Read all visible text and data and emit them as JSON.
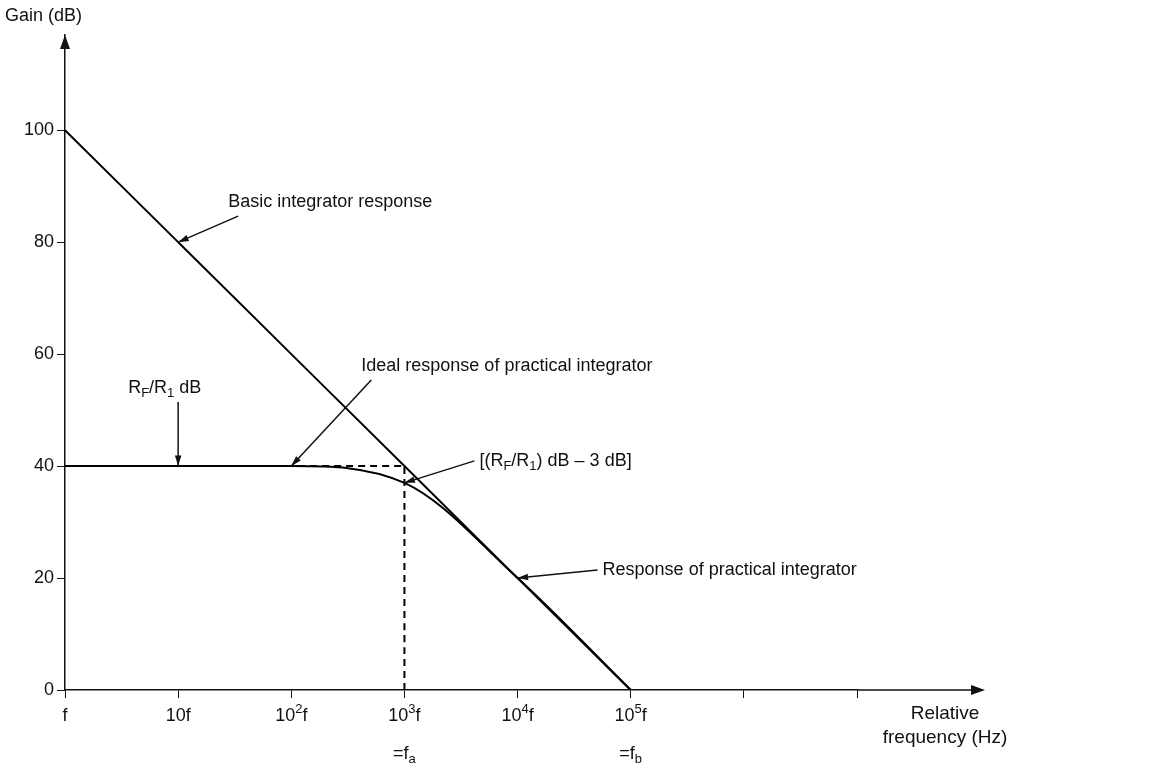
{
  "chart_data": {
    "type": "line",
    "xlabel": "Relative frequency (Hz)",
    "ylabel": "Gain (dB)",
    "grid": false,
    "legend": false,
    "marker": "none",
    "categories": [
      "f",
      "10f",
      "10$^{2}$f",
      "10$^{3}$f\n=f$_{a}$",
      "10$^{4}$f",
      "10$^{5}$f\n=f$_{b}$",
      null,
      null
    ],
    "ylim": [
      0,
      117
    ],
    "yticks": [
      0,
      20,
      40,
      60,
      80,
      100
    ],
    "series": [
      {
        "color": "#000000",
        "line_style": "solid",
        "values": [
          100,
          80,
          60,
          40,
          20,
          0,
          null,
          null
        ]
      },
      {
        "color": "#000000",
        "line_style": "solid",
        "values": [
          40,
          40,
          40,
          37,
          20,
          0,
          null,
          null
        ]
      },
      {
        "color": "#000000",
        "line_style": "dashed",
        "values": [
          null,
          40,
          40,
          40,
          null,
          null,
          null,
          null
        ]
      },
      {
        "color": "#000000",
        "line_style": "dashed",
        "x": [
          "10$^{3}$f\n=f$_{a}$",
          "10$^{3}$f\n=f$_{a}$"
        ],
        "values": [
          0,
          40
        ]
      }
    ],
    "annotations": [
      {
        "text": "Basic integrator response",
        "x": "10f",
        "y": 80
      },
      {
        "text": "R$_{F}$/R$_{1}$ dB",
        "x": "10f",
        "y": 40
      },
      {
        "text": "Ideal response of practical integrator",
        "x": "10$^{2}$f",
        "y": 40
      },
      {
        "text": "[(R$_{F}$/R$_{1}$) dB – 3 dB]",
        "x": "10$^{3}$f\n=f$_{a}$",
        "y": 37
      },
      {
        "text": "Response of practical integrator",
        "x": "10$^{4}$f",
        "y": 20
      }
    ]
  }
}
